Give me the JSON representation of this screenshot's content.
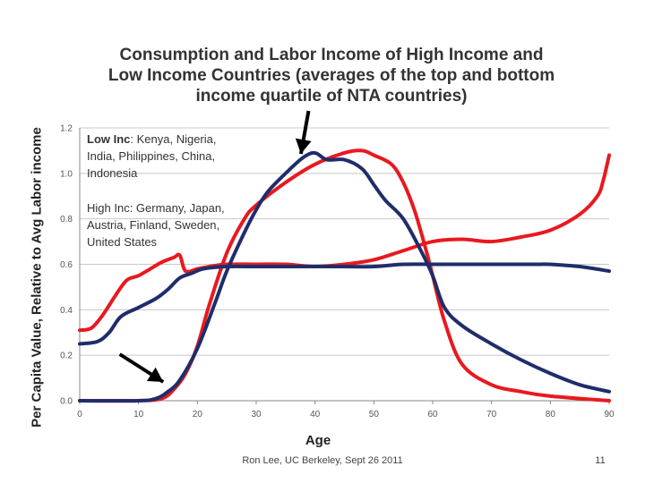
{
  "title_lines": [
    "Consumption and Labor Income of High Income and",
    "Low Income Countries (averages of the top and bottom",
    "income quartile of NTA countries)"
  ],
  "footer": "Ron Lee, UC Berkeley, Sept 26 2011",
  "page_number": "11",
  "chart_data": {
    "type": "line",
    "title": "Consumption and Labor Income of High Income and Low Income Countries (averages of the top and bottom income quartile of NTA countries)",
    "xlabel": "Age",
    "ylabel": "Per Capita Value, Relative to Avg Labor income",
    "xlim": [
      0,
      90
    ],
    "ylim": [
      0,
      1.2
    ],
    "xticks": [
      "0",
      "10",
      "20",
      "30",
      "40",
      "50",
      "60",
      "70",
      "80",
      "90"
    ],
    "yticks": [
      "0.0",
      "0.2",
      "0.4",
      "0.6",
      "0.8",
      "1.0",
      "1.2"
    ],
    "grid": "horizontal",
    "legend": [
      {
        "label": "Low Inc",
        "text": ": Kenya, Nigeria, India, Philippines, China, Indonesia"
      },
      {
        "label": "",
        "text": "High Inc: Germany, Japan, Austria, Finland, Sweden, United States"
      }
    ],
    "series": [
      {
        "color": "#e8191f",
        "x": [
          0,
          2,
          4,
          6,
          8,
          10,
          12,
          14,
          16,
          17,
          18,
          20,
          22,
          25,
          30,
          35,
          40,
          45,
          50,
          55,
          60,
          65,
          70,
          75,
          80,
          85,
          88,
          89,
          90
        ],
        "y": [
          0.31,
          0.32,
          0.38,
          0.46,
          0.53,
          0.55,
          0.58,
          0.61,
          0.63,
          0.64,
          0.57,
          0.58,
          0.59,
          0.6,
          0.6,
          0.6,
          0.59,
          0.6,
          0.62,
          0.66,
          0.7,
          0.71,
          0.7,
          0.72,
          0.75,
          0.82,
          0.9,
          0.97,
          1.08
        ]
      },
      {
        "color": "#e8191f",
        "x": [
          0,
          10,
          14,
          16,
          18,
          20,
          22,
          25,
          28,
          30,
          35,
          40,
          45,
          48,
          50,
          53,
          55,
          57,
          59,
          60,
          62,
          65,
          70,
          75,
          80,
          90
        ],
        "y": [
          0.0,
          0.0,
          0.01,
          0.05,
          0.12,
          0.24,
          0.42,
          0.65,
          0.8,
          0.86,
          0.96,
          1.04,
          1.09,
          1.1,
          1.08,
          1.04,
          0.96,
          0.83,
          0.65,
          0.55,
          0.35,
          0.16,
          0.07,
          0.04,
          0.02,
          0.0
        ]
      },
      {
        "color": "#1f2d6b",
        "x": [
          0,
          3,
          5,
          7,
          10,
          13,
          15,
          17,
          19,
          21,
          25,
          30,
          35,
          40,
          45,
          50,
          55,
          60,
          65,
          70,
          75,
          78,
          80,
          85,
          90
        ],
        "y": [
          0.25,
          0.26,
          0.3,
          0.37,
          0.41,
          0.45,
          0.49,
          0.54,
          0.56,
          0.58,
          0.59,
          0.59,
          0.59,
          0.59,
          0.59,
          0.59,
          0.6,
          0.6,
          0.6,
          0.6,
          0.6,
          0.6,
          0.6,
          0.59,
          0.57
        ]
      },
      {
        "color": "#1f2d6b",
        "x": [
          0,
          10,
          13,
          15,
          17,
          20,
          23,
          25,
          28,
          30,
          32,
          35,
          38,
          40,
          42,
          45,
          48,
          50,
          52,
          55,
          58,
          60,
          62,
          65,
          70,
          75,
          80,
          85,
          90
        ],
        "y": [
          0.0,
          0.0,
          0.01,
          0.04,
          0.09,
          0.23,
          0.43,
          0.57,
          0.74,
          0.84,
          0.92,
          1.0,
          1.07,
          1.09,
          1.06,
          1.06,
          1.02,
          0.95,
          0.88,
          0.8,
          0.66,
          0.55,
          0.41,
          0.33,
          0.25,
          0.18,
          0.12,
          0.07,
          0.04
        ]
      }
    ],
    "annotations": [
      "arrow pointing to high-income consumption peak near age 51",
      "arrow pointing to labor income onset near age 15"
    ]
  }
}
